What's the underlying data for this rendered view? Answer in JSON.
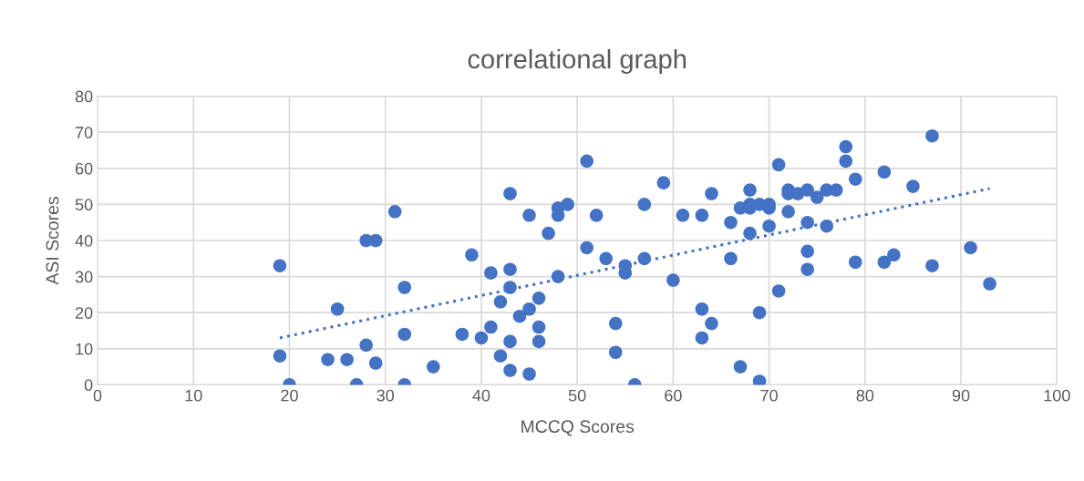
{
  "chart_data": {
    "type": "scatter",
    "title": "correlational graph",
    "xlabel": "MCCQ Scores",
    "ylabel": "ASI Scores",
    "xlim": [
      0,
      100
    ],
    "xticks": [
      0,
      10,
      20,
      30,
      40,
      50,
      60,
      70,
      80,
      90,
      100
    ],
    "ylim": [
      0,
      80
    ],
    "yticks": [
      0,
      10,
      20,
      30,
      40,
      50,
      60,
      70,
      80
    ],
    "grid": true,
    "series": [
      {
        "color": "#4472c4",
        "marker": "circle",
        "x": [
          19,
          19,
          20,
          24,
          25,
          26,
          27,
          28,
          29,
          28,
          29,
          31,
          32,
          32,
          32,
          35,
          38,
          39,
          40,
          41,
          41,
          42,
          42,
          43,
          43,
          43,
          43,
          43,
          44,
          45,
          45,
          45,
          46,
          46,
          46,
          47,
          48,
          48,
          48,
          49,
          51,
          51,
          52,
          53,
          54,
          54,
          55,
          55,
          56,
          57,
          57,
          59,
          60,
          61,
          63,
          63,
          63,
          64,
          64,
          66,
          66,
          67,
          67,
          68,
          68,
          68,
          68,
          69,
          69,
          69,
          70,
          70,
          70,
          71,
          71,
          72,
          72,
          72,
          73,
          74,
          74,
          74,
          74,
          75,
          76,
          76,
          77,
          78,
          78,
          79,
          79,
          82,
          82,
          83,
          85,
          87,
          87,
          91,
          93
        ],
        "values": [
          33,
          8,
          0,
          7,
          21,
          7,
          0,
          40,
          40,
          11,
          6,
          48,
          27,
          14,
          0,
          5,
          14,
          36,
          13,
          31,
          16,
          23,
          8,
          53,
          32,
          27,
          12,
          4,
          19,
          47,
          21,
          3,
          24,
          16,
          12,
          42,
          49,
          47,
          30,
          50,
          62,
          38,
          47,
          35,
          17,
          9,
          33,
          31,
          0,
          50,
          35,
          56,
          29,
          47,
          47,
          21,
          13,
          53,
          17,
          45,
          35,
          49,
          5,
          54,
          50,
          49,
          42,
          50,
          20,
          1,
          50,
          49,
          44,
          61,
          26,
          54,
          53,
          48,
          53,
          54,
          45,
          37,
          32,
          52,
          54,
          44,
          54,
          66,
          62,
          57,
          34,
          59,
          34,
          36,
          55,
          69,
          33,
          38,
          28
        ]
      },
      {
        "type": "line",
        "color": "#4472c4",
        "line_style": "dotted",
        "marker": "none",
        "x": [
          19,
          93
        ],
        "values": [
          13,
          54.4
        ]
      }
    ]
  }
}
